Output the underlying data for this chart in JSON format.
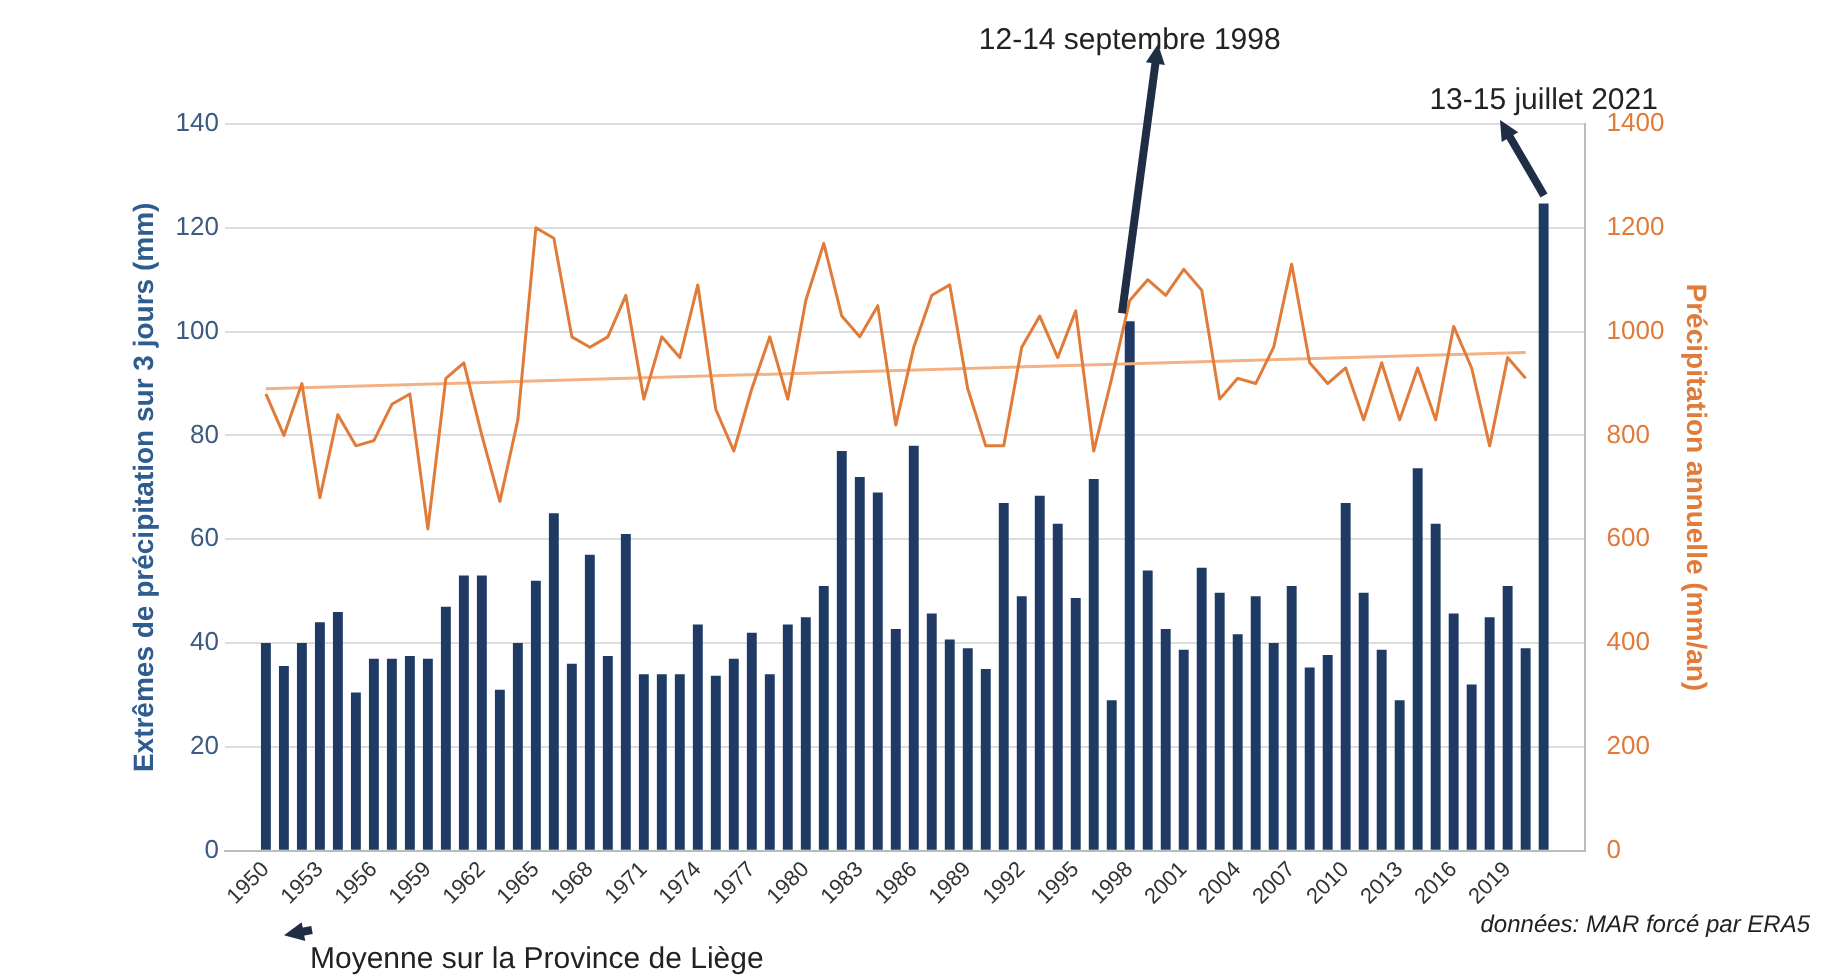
{
  "chart_data": {
    "type": "bar",
    "ylabel": "Extrêmes de précipitation sur 3 jours (mm)",
    "y2label": "Précipitation annuelle (mm/an)",
    "x": [
      1950,
      1951,
      1952,
      1953,
      1954,
      1955,
      1956,
      1957,
      1958,
      1959,
      1960,
      1961,
      1962,
      1963,
      1964,
      1965,
      1966,
      1967,
      1968,
      1969,
      1970,
      1971,
      1972,
      1973,
      1974,
      1975,
      1976,
      1977,
      1978,
      1979,
      1980,
      1981,
      1982,
      1983,
      1984,
      1985,
      1986,
      1987,
      1988,
      1989,
      1990,
      1991,
      1992,
      1993,
      1994,
      1995,
      1996,
      1997,
      1998,
      1999,
      2000,
      2001,
      2002,
      2003,
      2004,
      2005,
      2006,
      2007,
      2008,
      2009,
      2010,
      2011,
      2012,
      2013,
      2014,
      2015,
      2016,
      2017,
      2018,
      2019,
      2020,
      2021
    ],
    "xlim": [
      1949.3,
      2021.7
    ],
    "xticks": [
      1950,
      1953,
      1956,
      1959,
      1962,
      1965,
      1968,
      1971,
      1974,
      1977,
      1980,
      1983,
      1986,
      1989,
      1992,
      1995,
      1998,
      2001,
      2004,
      2007,
      2010,
      2013,
      2016,
      2019
    ],
    "ylim": [
      0,
      140
    ],
    "yticks": [
      0,
      20,
      40,
      60,
      80,
      100,
      120,
      140
    ],
    "y2lim": [
      0,
      1400
    ],
    "y2ticks": [
      0,
      200,
      400,
      600,
      800,
      1000,
      1200,
      1400
    ],
    "grid": "y",
    "series": [
      {
        "color": "#1f3a64",
        "values": [
          40,
          35.6,
          40,
          44,
          46,
          30.5,
          37,
          37,
          37.5,
          37,
          47,
          53,
          53,
          31,
          40,
          52,
          65,
          36,
          57,
          37.5,
          61,
          34,
          34,
          34,
          43.6,
          33.7,
          37,
          42,
          34,
          43.6,
          45,
          51,
          77,
          72,
          69,
          42.7,
          78,
          45.7,
          40.7,
          39,
          35,
          67,
          49,
          68.4,
          63,
          48.7,
          71.6,
          29,
          102,
          54,
          42.7,
          38.7,
          54.5,
          49.7,
          41.7,
          49,
          40,
          51,
          35.3,
          37.7,
          67,
          49.7,
          38.7,
          29,
          73.7,
          63,
          45.7,
          32,
          45,
          51,
          39,
          124.7
        ]
      },
      {
        "type": "line",
        "color": "#e07b39",
        "axis": "y2",
        "values": [
          880,
          800,
          900,
          680,
          840,
          780,
          790,
          860,
          880,
          620,
          910,
          940,
          800,
          673,
          830,
          1200,
          1180,
          990,
          970,
          990,
          1070,
          870,
          990,
          950,
          1090,
          850,
          770,
          890,
          990,
          870,
          1060,
          1170,
          1030,
          990,
          1050,
          820,
          970,
          1070,
          1090,
          890,
          780,
          780,
          970,
          1030,
          950,
          1040,
          770,
          910,
          1060,
          1100,
          1070,
          1120,
          1080,
          870,
          910,
          900,
          970,
          1130,
          940,
          900,
          930,
          830,
          940,
          830,
          930,
          830,
          1010,
          930,
          780,
          950,
          910,
          null
        ]
      },
      {
        "type": "line",
        "color": "#f4b183",
        "axis": "y2",
        "x": [
          1950,
          2020
        ],
        "values": [
          890,
          960
        ]
      }
    ],
    "annotations": [
      {
        "text": "12-14 septembre 1998",
        "x": 1998,
        "y": 102
      },
      {
        "text": "13-15 juillet 2021",
        "x": 2021,
        "y": 124.7
      },
      "Moyenne sur la Province de Liège",
      "données: MAR forcé par ERA5"
    ]
  }
}
